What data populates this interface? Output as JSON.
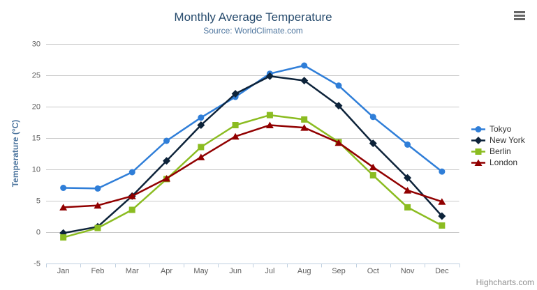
{
  "header": {
    "title": "Monthly Average Temperature",
    "subtitle": "Source: WorldClimate.com"
  },
  "toolbar": {
    "context_menu_icon": "hamburger-menu-icon"
  },
  "credits": {
    "label": "Highcharts.com"
  },
  "colors": {
    "title": "#274b6d",
    "subtitle": "#4d759e",
    "axis_title": "#4d759e",
    "axis_labels": "#606060",
    "gridline": "#c9c9c9",
    "x_axis_line": "#c0d0e0",
    "legend_text": "#333333",
    "credits_text": "#909090"
  },
  "chart_data": {
    "type": "line",
    "title": "Monthly Average Temperature",
    "subtitle": "Source: WorldClimate.com",
    "categories": [
      "Jan",
      "Feb",
      "Mar",
      "Apr",
      "May",
      "Jun",
      "Jul",
      "Aug",
      "Sep",
      "Oct",
      "Nov",
      "Dec"
    ],
    "series": [
      {
        "name": "Tokyo",
        "color": "#2f7ed8",
        "marker": "circle",
        "values": [
          7.0,
          6.9,
          9.5,
          14.5,
          18.2,
          21.5,
          25.2,
          26.5,
          23.3,
          18.3,
          13.9,
          9.6
        ]
      },
      {
        "name": "New York",
        "color": "#0d233a",
        "marker": "diamond",
        "values": [
          -0.2,
          0.8,
          5.7,
          11.3,
          17.0,
          22.0,
          24.8,
          24.1,
          20.1,
          14.1,
          8.6,
          2.5
        ]
      },
      {
        "name": "Berlin",
        "color": "#8bbc21",
        "marker": "square",
        "values": [
          -0.9,
          0.6,
          3.5,
          8.4,
          13.5,
          17.0,
          18.6,
          17.9,
          14.3,
          9.0,
          3.9,
          1.0
        ]
      },
      {
        "name": "London",
        "color": "#910000",
        "marker": "triangle",
        "values": [
          3.9,
          4.2,
          5.7,
          8.5,
          11.9,
          15.2,
          17.0,
          16.6,
          14.2,
          10.3,
          6.6,
          4.8
        ]
      }
    ],
    "xlabel": "",
    "ylabel": "Temperature (°C)",
    "ylim": [
      -5,
      30
    ],
    "yticks": [
      -5,
      0,
      5,
      10,
      15,
      20,
      25,
      30
    ],
    "grid": true,
    "legend_position": "right"
  }
}
